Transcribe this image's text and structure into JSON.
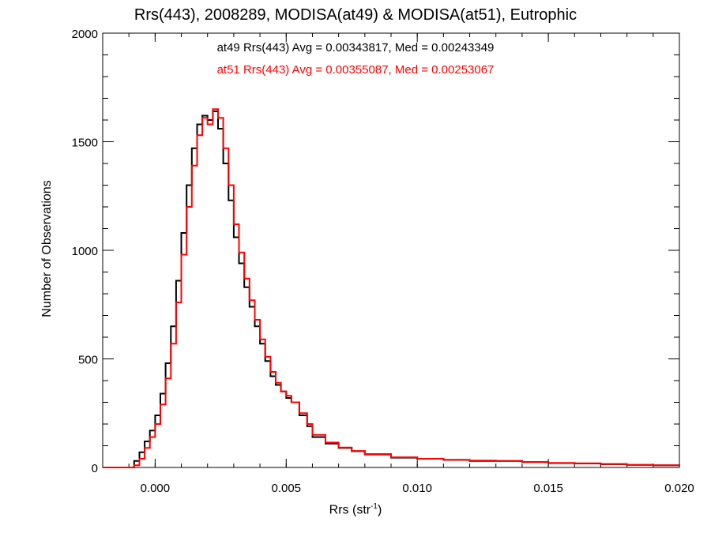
{
  "chart_data": {
    "type": "line",
    "title": "Rrs(443), 2008289, MODISA(at49) & MODISA(at51), Eutrophic",
    "xlabel_text": "Rrs (str",
    "xlabel_sup": "-1",
    "xlabel_close": ")",
    "ylabel": "Number of Observations",
    "xlim": [
      -0.002,
      0.02
    ],
    "ylim": [
      0,
      2000
    ],
    "xticks": [
      0.0,
      0.005,
      0.01,
      0.015,
      0.02
    ],
    "xtick_labels": [
      "0.000",
      "0.005",
      "0.010",
      "0.015",
      "0.020"
    ],
    "yticks": [
      0,
      500,
      1000,
      1500,
      2000
    ],
    "ytick_labels": [
      "0",
      "500",
      "1000",
      "1500",
      "2000"
    ],
    "grid": false,
    "annotations": [
      {
        "text": "at49 Rrs(443) Avg = 0.00343817, Med = 0.00243349",
        "color": "#000000"
      },
      {
        "text": "at51 Rrs(443) Avg = 0.00355087, Med = 0.00253067",
        "color": "#ff0000"
      }
    ],
    "series": [
      {
        "color": "#000000",
        "x": [
          -0.002,
          -0.0011,
          -0.0008,
          -0.0006,
          -0.0004,
          -0.0002,
          0.0,
          0.0002,
          0.0004,
          0.0006,
          0.0008,
          0.001,
          0.0012,
          0.0014,
          0.0016,
          0.0018,
          0.002,
          0.0022,
          0.0024,
          0.0026,
          0.0028,
          0.003,
          0.0032,
          0.0034,
          0.0036,
          0.0038,
          0.004,
          0.0042,
          0.0044,
          0.0046,
          0.0048,
          0.005,
          0.0052,
          0.0055,
          0.0058,
          0.006,
          0.0065,
          0.007,
          0.0075,
          0.008,
          0.009,
          0.01,
          0.011,
          0.012,
          0.013,
          0.014,
          0.015,
          0.016,
          0.017,
          0.018,
          0.019,
          0.02
        ],
        "y": [
          0,
          0,
          30,
          70,
          120,
          170,
          240,
          340,
          480,
          650,
          860,
          1080,
          1300,
          1470,
          1580,
          1620,
          1600,
          1640,
          1560,
          1400,
          1230,
          1060,
          940,
          830,
          740,
          650,
          570,
          490,
          420,
          380,
          350,
          320,
          300,
          240,
          190,
          140,
          110,
          90,
          75,
          60,
          45,
          40,
          35,
          30,
          30,
          25,
          20,
          18,
          15,
          12,
          10,
          6
        ]
      },
      {
        "color": "#ff0000",
        "x": [
          -0.002,
          -0.0011,
          -0.0008,
          -0.0006,
          -0.0004,
          -0.0002,
          0.0,
          0.0002,
          0.0004,
          0.0006,
          0.0008,
          0.001,
          0.0012,
          0.0014,
          0.0016,
          0.0018,
          0.002,
          0.0022,
          0.0024,
          0.0026,
          0.0028,
          0.003,
          0.0032,
          0.0034,
          0.0036,
          0.0038,
          0.004,
          0.0042,
          0.0044,
          0.0046,
          0.0048,
          0.005,
          0.0052,
          0.0055,
          0.0058,
          0.006,
          0.0065,
          0.007,
          0.0075,
          0.008,
          0.009,
          0.01,
          0.011,
          0.012,
          0.013,
          0.014,
          0.015,
          0.016,
          0.017,
          0.018,
          0.019,
          0.02
        ],
        "y": [
          0,
          0,
          10,
          40,
          90,
          140,
          200,
          290,
          410,
          570,
          760,
          980,
          1200,
          1390,
          1530,
          1610,
          1580,
          1650,
          1610,
          1470,
          1300,
          1120,
          990,
          870,
          770,
          680,
          590,
          510,
          440,
          390,
          350,
          330,
          300,
          250,
          200,
          150,
          115,
          92,
          76,
          62,
          47,
          40,
          35,
          32,
          30,
          25,
          21,
          19,
          16,
          12,
          10,
          7
        ]
      }
    ]
  }
}
